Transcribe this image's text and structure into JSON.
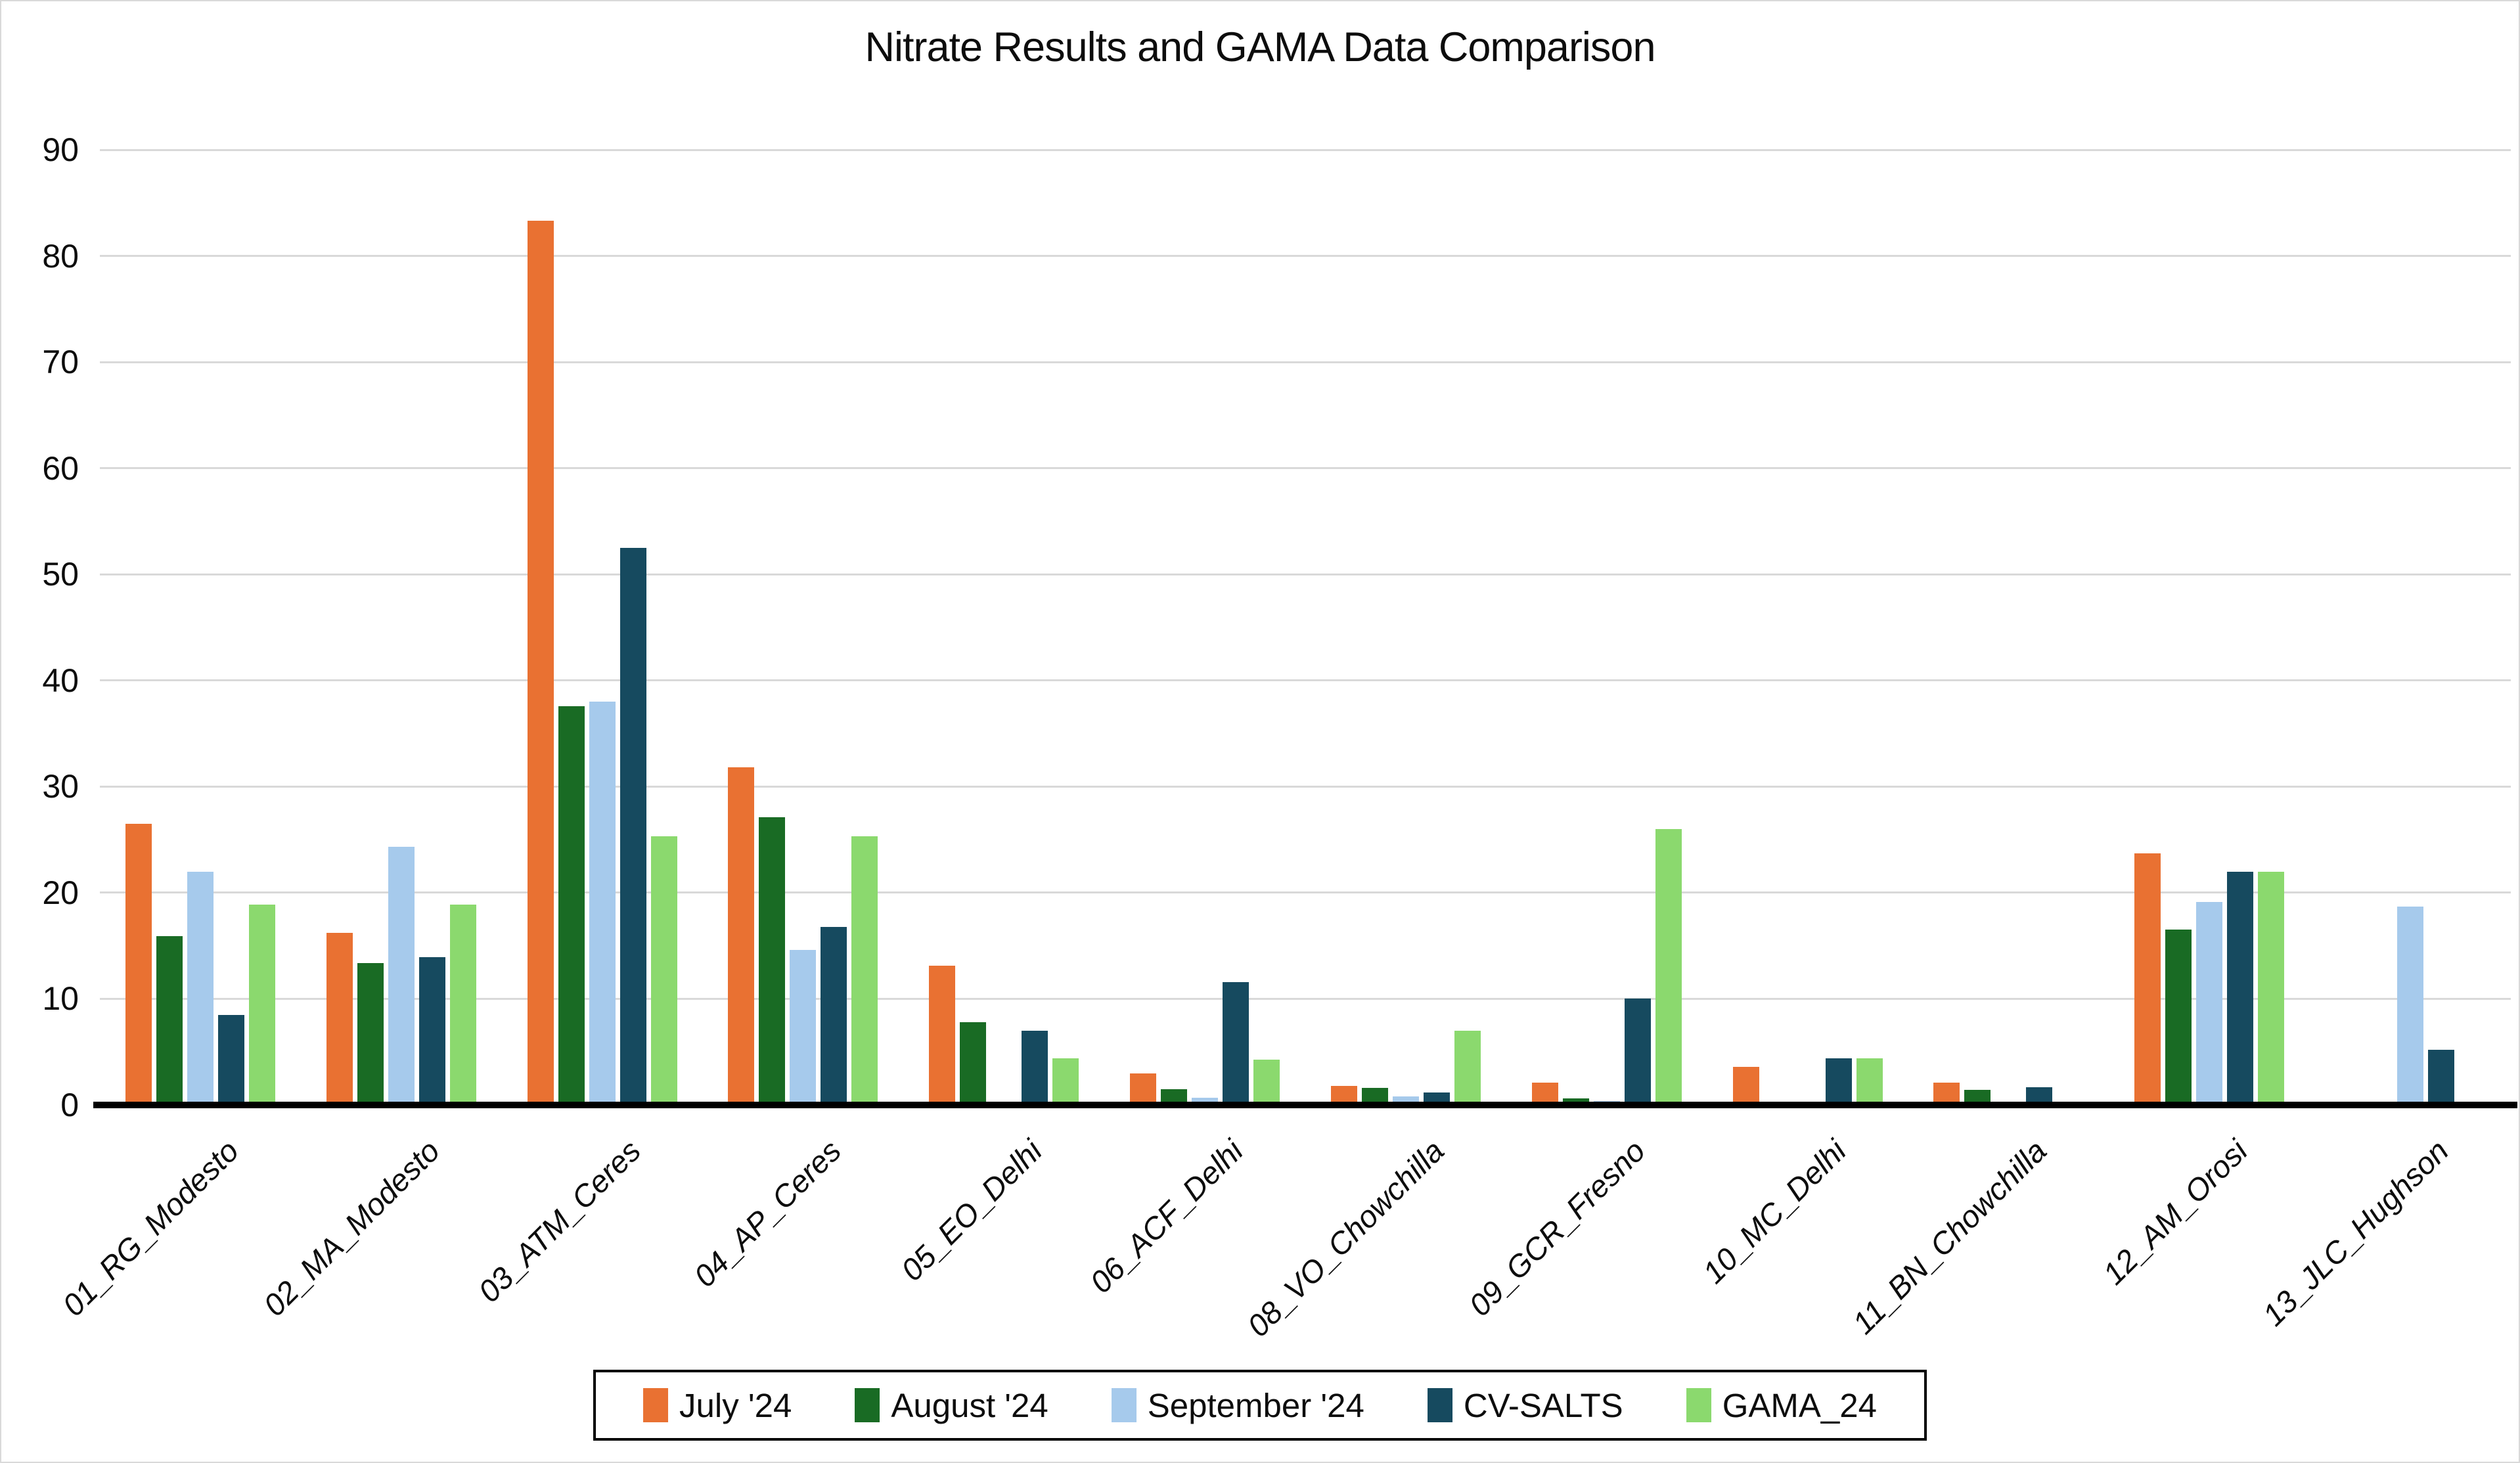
{
  "chart_data": {
    "type": "bar",
    "title": "Nitrate Results and GAMA Data Comparison",
    "xlabel": "",
    "ylabel": "",
    "ylim": [
      0,
      90
    ],
    "yticks": [
      0,
      10,
      20,
      30,
      40,
      50,
      60,
      70,
      80,
      90
    ],
    "grid": true,
    "legend_position": "bottom-center",
    "categories": [
      "01_RG_Modesto",
      "02_MA_Modesto",
      "03_ATM_Ceres",
      "04_AP_Ceres",
      "05_EO_Delhi",
      "06_ACF_Delhi",
      "08_VO_Chowchilla",
      "09_GCR_Fresno",
      "10_MC_Delhi",
      "11_BN_Chowchilla",
      "12_AM_Orosi",
      "13_JLC_Hughson"
    ],
    "series": [
      {
        "name": "July '24",
        "color": "#E97132",
        "values": [
          26.5,
          16.2,
          83.3,
          31.8,
          13.1,
          3.0,
          1.8,
          2.1,
          3.6,
          2.1,
          23.7,
          0
        ]
      },
      {
        "name": "August '24",
        "color": "#196B24",
        "values": [
          15.9,
          13.4,
          37.6,
          27.1,
          7.8,
          1.5,
          1.6,
          0.6,
          0,
          1.4,
          16.5,
          0
        ]
      },
      {
        "name": "September '24",
        "color": "#A6CAEC",
        "values": [
          22.0,
          24.3,
          38.0,
          14.6,
          0,
          0.7,
          0.8,
          0.4,
          0,
          0,
          19.1,
          18.7
        ]
      },
      {
        "name": "CV-SALTS",
        "color": "#164A5F",
        "values": [
          8.5,
          13.9,
          52.5,
          16.8,
          7.0,
          11.6,
          1.2,
          10.0,
          4.4,
          1.7,
          22.0,
          5.2
        ]
      },
      {
        "name": "GAMA_24",
        "color": "#8BD96E",
        "values": [
          18.9,
          18.9,
          25.3,
          25.3,
          4.4,
          4.3,
          7.0,
          26.0,
          4.4,
          0,
          22.0,
          0
        ]
      }
    ],
    "colors": {
      "gridline": "#D9D9D9",
      "axis": "#000000",
      "text": "#0D0D0D",
      "background": "#FFFFFF",
      "legend_border": "#000000"
    }
  }
}
